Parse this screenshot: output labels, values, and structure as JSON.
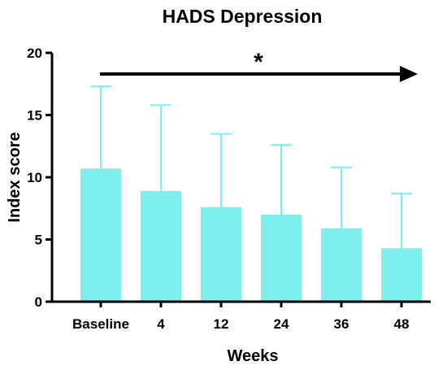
{
  "colors": {
    "bar": "#7df0ee",
    "axis": "#000000",
    "arrow": "#000000"
  },
  "chart_data": {
    "type": "bar",
    "title": "HADS Depression",
    "xlabel": "Weeks",
    "ylabel": "Index score",
    "categories": [
      "Baseline",
      "4",
      "12",
      "24",
      "36",
      "48"
    ],
    "series": [
      {
        "values": [
          10.7,
          8.9,
          7.6,
          7.0,
          5.9,
          4.3
        ],
        "error_upper": [
          17.3,
          15.8,
          13.5,
          12.6,
          10.8,
          8.7
        ]
      }
    ],
    "ylim": [
      0,
      20
    ],
    "yticks": [
      "0",
      "5",
      "10",
      "15",
      "20"
    ],
    "grid": false,
    "legend": "none",
    "annotation": {
      "text": "*",
      "kind": "arrow spanning Baseline to 48"
    }
  }
}
